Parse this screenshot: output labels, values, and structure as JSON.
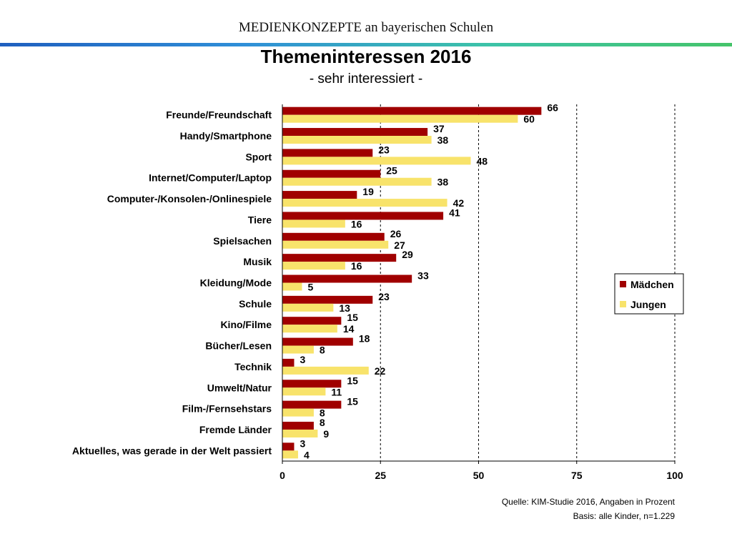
{
  "header": {
    "title": "MEDIENKONZEPTE an bayerischen Schulen",
    "band_colors": [
      "#1f5fbf",
      "#2f8fd8",
      "#3cc3a8",
      "#45c46a"
    ]
  },
  "chart_data": {
    "type": "bar",
    "orientation": "horizontal",
    "title": "Themeninteressen 2016",
    "subtitle": "- sehr interessiert -",
    "categories": [
      "Freunde/Freundschaft",
      "Handy/Smartphone",
      "Sport",
      "Internet/Computer/Laptop",
      "Computer-/Konsolen-/Onlinespiele",
      "Tiere",
      "Spielsachen",
      "Musik",
      "Kleidung/Mode",
      "Schule",
      "Kino/Filme",
      "Bücher/Lesen",
      "Technik",
      "Umwelt/Natur",
      "Film-/Fernsehstars",
      "Fremde Länder",
      "Aktuelles, was gerade in der Welt passiert"
    ],
    "series": [
      {
        "name": "Mädchen",
        "color": "#a00000",
        "values": [
          66,
          37,
          23,
          25,
          19,
          41,
          26,
          29,
          33,
          23,
          15,
          18,
          3,
          15,
          15,
          8,
          3
        ]
      },
      {
        "name": "Jungen",
        "color": "#f8e36b",
        "values": [
          60,
          38,
          48,
          38,
          42,
          16,
          27,
          16,
          5,
          13,
          14,
          8,
          22,
          11,
          8,
          9,
          4
        ]
      }
    ],
    "xlim": [
      0,
      100
    ],
    "xticks": [
      "0",
      "25",
      "50",
      "75",
      "100"
    ],
    "grid": "dashed vertical gridlines",
    "legend_position": "right"
  },
  "footnotes": {
    "source": "Quelle: KIM-Studie 2016, Angaben in Prozent",
    "basis": "Basis: alle Kinder, n=1.229"
  }
}
